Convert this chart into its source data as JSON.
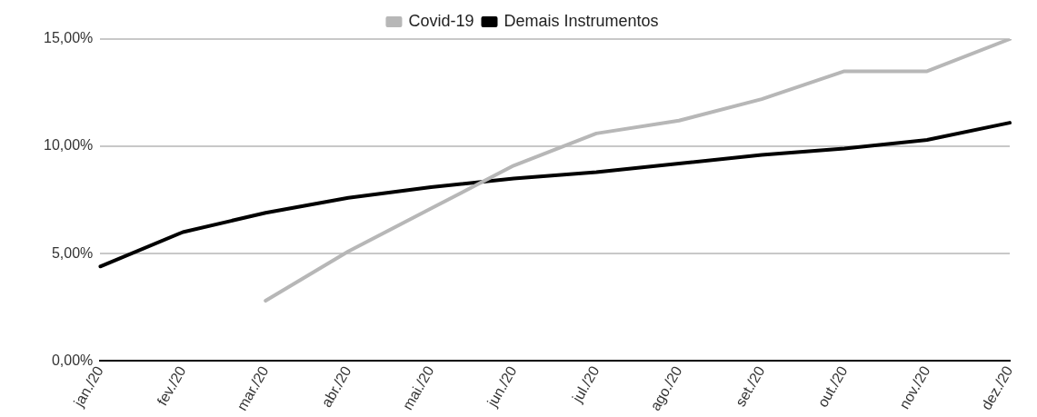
{
  "chart_data": {
    "type": "line",
    "categories": [
      "jan./20",
      "fev./20",
      "mar./20",
      "abr./20",
      "mai./20",
      "jun./20",
      "jul./20",
      "ago./20",
      "set./20",
      "out./20",
      "nov./20",
      "dez./20"
    ],
    "series": [
      {
        "name": "Covid-19",
        "color": "#b7b7b7",
        "values": [
          null,
          null,
          2.8,
          5.1,
          7.1,
          9.1,
          10.6,
          11.2,
          12.2,
          13.5,
          13.5,
          15.0
        ]
      },
      {
        "name": "Demais Instrumentos",
        "color": "#000000",
        "values": [
          4.4,
          6.0,
          6.9,
          7.6,
          8.1,
          8.5,
          8.8,
          9.2,
          9.6,
          9.9,
          10.3,
          11.1
        ]
      }
    ],
    "ylim": [
      0,
      15
    ],
    "yticks": [
      {
        "value": 0,
        "label": "0,00%"
      },
      {
        "value": 5,
        "label": "5,00%"
      },
      {
        "value": 10,
        "label": "10,00%"
      },
      {
        "value": 15,
        "label": "15,00%"
      }
    ],
    "grid": "y",
    "legend": "top",
    "marker": "none",
    "line_style": "solid"
  }
}
